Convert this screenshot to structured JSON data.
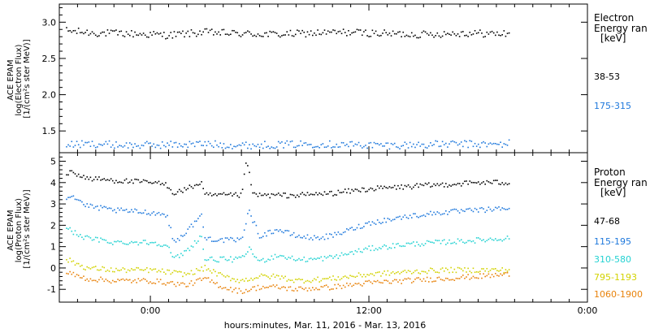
{
  "figure": {
    "x_title": "hours:minutes, Mar. 11, 2016 - Mar. 13, 2016",
    "x_tick_labels": [
      "0:00",
      "12:00",
      "0:00"
    ]
  },
  "chart_data": [
    {
      "type": "scatter",
      "panel": "electron",
      "ylabel": [
        "ACE EPAM",
        "log(Electron Flux)",
        "[1/(cm²s ster MeV)]"
      ],
      "y_ticks": [
        "1.5",
        "2.0",
        "2.5",
        "3.0"
      ],
      "ylim": [
        1.2,
        3.25
      ],
      "x_unit": "hours from 2016-03-11 0:00",
      "xlim": [
        -5,
        24
      ],
      "grid": false,
      "legend_title": [
        "Electron",
        "Energy ran",
        "[keV]"
      ],
      "legend_placement": "right",
      "series": [
        {
          "name": "38-53",
          "color": "#000000",
          "x": [
            -4.6,
            -3.0,
            -1.0,
            1.0,
            3.0,
            5.0,
            7.0,
            9.0,
            11.0,
            13.0,
            15.0,
            17.0,
            19.0,
            19.7
          ],
          "y": [
            2.88,
            2.85,
            2.84,
            2.82,
            2.86,
            2.84,
            2.83,
            2.85,
            2.86,
            2.84,
            2.83,
            2.85,
            2.84,
            2.84
          ]
        },
        {
          "name": "175-315",
          "color": "#1e78dc",
          "x": [
            -4.6,
            -3.0,
            -1.0,
            1.0,
            3.0,
            5.0,
            7.0,
            9.0,
            11.0,
            13.0,
            15.0,
            17.0,
            19.0,
            19.7
          ],
          "y": [
            1.31,
            1.32,
            1.3,
            1.31,
            1.32,
            1.3,
            1.31,
            1.32,
            1.31,
            1.3,
            1.31,
            1.32,
            1.31,
            1.33
          ]
        }
      ]
    },
    {
      "type": "scatter",
      "panel": "proton",
      "ylabel": [
        "ACE EPAM",
        "log(Proton Flux)",
        "[1/(cm²s ster MeV)]"
      ],
      "y_ticks": [
        "-1",
        "0",
        "1",
        "2",
        "3",
        "4",
        "5"
      ],
      "ylim": [
        -1.6,
        5.4
      ],
      "x_unit": "hours from 2016-03-11 0:00",
      "xlim": [
        -5,
        24
      ],
      "grid": false,
      "legend_title": [
        "Proton",
        "Energy ran",
        "[keV]"
      ],
      "legend_placement": "right",
      "series": [
        {
          "name": "47-68",
          "color": "#000000",
          "x": [
            -4.6,
            -4.3,
            -3.5,
            -2.0,
            0.0,
            0.9,
            1.3,
            2.0,
            2.8,
            3.0,
            4.0,
            5.0,
            5.3,
            5.6,
            6.0,
            7.0,
            8.0,
            10.0,
            12.0,
            14.0,
            16.0,
            18.0,
            19.7
          ],
          "y": [
            4.4,
            4.5,
            4.2,
            4.1,
            4.0,
            3.9,
            3.5,
            3.7,
            4.0,
            3.4,
            3.4,
            3.4,
            5.1,
            3.5,
            3.4,
            3.4,
            3.4,
            3.5,
            3.7,
            3.8,
            3.9,
            4.0,
            4.0
          ]
        },
        {
          "name": "115-195",
          "color": "#1e78dc",
          "x": [
            -4.6,
            -4.3,
            -3.5,
            -2.0,
            0.0,
            0.9,
            1.3,
            2.0,
            2.8,
            3.0,
            4.0,
            5.0,
            5.4,
            6.0,
            7.0,
            8.0,
            9.0,
            10.0,
            12.0,
            14.0,
            16.0,
            18.0,
            19.7
          ],
          "y": [
            3.3,
            3.4,
            2.9,
            2.7,
            2.6,
            2.5,
            1.2,
            1.7,
            2.5,
            1.4,
            1.3,
            1.3,
            2.7,
            1.5,
            1.8,
            1.5,
            1.4,
            1.5,
            2.1,
            2.4,
            2.6,
            2.7,
            2.8
          ]
        },
        {
          "name": "310-580",
          "color": "#24d2d2",
          "x": [
            -4.6,
            -4.3,
            -3.5,
            -2.0,
            0.0,
            0.9,
            1.3,
            2.0,
            2.8,
            3.0,
            4.0,
            5.0,
            5.4,
            6.0,
            7.0,
            8.0,
            9.0,
            10.0,
            12.0,
            14.0,
            16.0,
            18.0,
            19.7
          ],
          "y": [
            1.9,
            1.7,
            1.4,
            1.2,
            1.2,
            1.1,
            0.4,
            0.8,
            1.5,
            0.4,
            0.4,
            0.4,
            0.9,
            0.3,
            0.6,
            0.4,
            0.4,
            0.5,
            0.9,
            1.1,
            1.2,
            1.3,
            1.4
          ]
        },
        {
          "name": "795-1193",
          "color": "#d2d200",
          "x": [
            -4.6,
            -4.3,
            -3.5,
            -2.0,
            0.0,
            1.0,
            2.0,
            3.0,
            4.0,
            5.0,
            6.0,
            7.0,
            8.0,
            10.0,
            12.0,
            14.0,
            16.0,
            18.0,
            19.7
          ],
          "y": [
            0.4,
            0.3,
            0.0,
            -0.1,
            -0.1,
            -0.2,
            -0.3,
            0.0,
            -0.4,
            -0.6,
            -0.4,
            -0.4,
            -0.6,
            -0.5,
            -0.3,
            -0.2,
            -0.1,
            -0.1,
            -0.1
          ]
        },
        {
          "name": "1060-1900",
          "color": "#e8820a",
          "x": [
            -4.6,
            -4.3,
            -3.5,
            -2.0,
            0.0,
            1.0,
            2.0,
            3.0,
            4.0,
            5.0,
            6.0,
            7.0,
            8.0,
            10.0,
            12.0,
            14.0,
            16.0,
            18.0,
            19.7
          ],
          "y": [
            -0.2,
            -0.3,
            -0.5,
            -0.6,
            -0.6,
            -0.7,
            -0.8,
            -0.5,
            -0.9,
            -1.1,
            -0.9,
            -0.9,
            -1.0,
            -0.9,
            -0.7,
            -0.6,
            -0.5,
            -0.4,
            -0.3
          ]
        }
      ]
    }
  ]
}
